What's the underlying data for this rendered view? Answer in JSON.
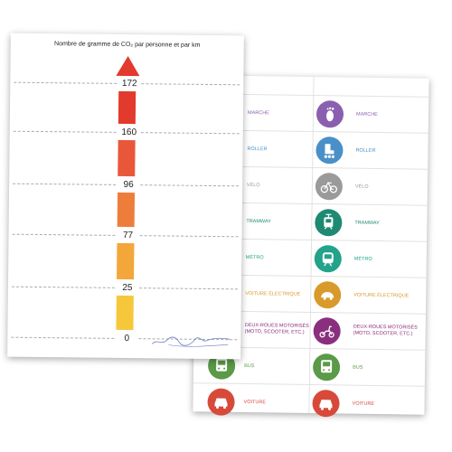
{
  "scale_sheet": {
    "title": "Nombre de gramme de CO₂ par personne et par km",
    "ticks": [
      "172",
      "160",
      "96",
      "77",
      "25",
      "0"
    ],
    "arrow_color": "#e23a2c",
    "segment_colors": [
      "#e23a2c",
      "#e9573a",
      "#ee7d3b",
      "#f3a63a",
      "#f6c73a",
      "#fbe63a"
    ]
  },
  "modes_sheet": {
    "rows": [
      {
        "label": "MARCHE",
        "color": "#8b5fb0",
        "icon": "footprint-icon"
      },
      {
        "label": "ROLLER",
        "color": "#4a90c8",
        "icon": "roller-skate-icon"
      },
      {
        "label": "VÉLO",
        "color": "#9a9a9a",
        "icon": "bicycle-icon"
      },
      {
        "label": "TRAMWAY",
        "color": "#1f8a72",
        "icon": "tramway-icon"
      },
      {
        "label": "MÉTRO",
        "color": "#22a38a",
        "icon": "metro-icon"
      },
      {
        "label": "VOITURE ÉLECTRIQUE",
        "color": "#d89a2a",
        "icon": "electric-car-icon"
      },
      {
        "label": "DEUX-ROUES MOTORISÉS (MOTO, SCOOTER, ETC.)",
        "color": "#8a2f7e",
        "icon": "scooter-icon"
      },
      {
        "label": "BUS",
        "color": "#5a9a48",
        "icon": "bus-icon"
      },
      {
        "label": "VOITURE",
        "color": "#d74a3a",
        "icon": "car-icon"
      }
    ]
  }
}
